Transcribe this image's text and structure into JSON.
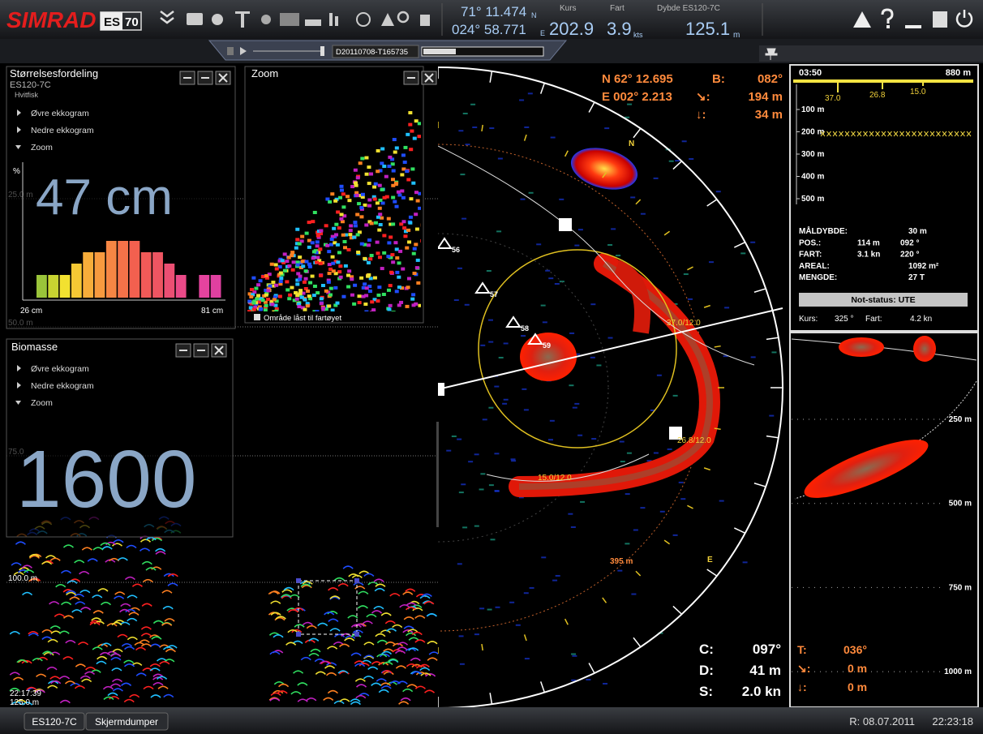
{
  "top_bar": {
    "brand": "SIMRAD",
    "model_prefix": "ES",
    "model_num": "70",
    "lat": "71° 11.474",
    "lat_hem": "N",
    "lon": "024° 58.771",
    "lon_hem": "E",
    "course_label": "Kurs",
    "course": "202.9",
    "speed_label": "Fart",
    "speed": "3.9",
    "speed_unit": "kts",
    "depth_label": "Dybde ES120-7C",
    "depth": "125.1",
    "depth_unit": "m"
  },
  "toolbar": {
    "file": "D20110708-T165735"
  },
  "size_panel": {
    "title": "Størrelsesfordeling",
    "sounder": "ES120-7C",
    "species": "Hvitfisk",
    "menu": [
      "Øvre ekkogram",
      "Nedre ekkogram",
      "Zoom"
    ],
    "axis_label": "%",
    "mean": "47 cm",
    "min_label": "26 cm",
    "max_label": "81 cm",
    "histogram": {
      "values": [
        4,
        4,
        4,
        6,
        8,
        8,
        10,
        10,
        10,
        8,
        8,
        6,
        4,
        0,
        4,
        4
      ],
      "colors": [
        "#9ac43a",
        "#c8d431",
        "#f2e130",
        "#f5c834",
        "#f7ad3a",
        "#f79a3f",
        "#f68644",
        "#f57249",
        "#f3604f",
        "#f15a58",
        "#ee5562",
        "#ec4f73",
        "#ea4a88",
        "#e8469c",
        "#e5439e",
        "#e040a0"
      ]
    }
  },
  "zoom_panel": {
    "title": "Zoom",
    "lock_label": "Område låst til fartøyet"
  },
  "biomass_panel": {
    "title": "Biomasse",
    "menu": [
      "Øvre ekkogram",
      "Nedre ekkogram",
      "Zoom"
    ],
    "value": "1600"
  },
  "echogram": {
    "depth_labels": [
      "25.0 m",
      "50.0 m",
      "75.0",
      "100.0 m"
    ],
    "time": "22:17:39",
    "bottom_depth": "125.0 m"
  },
  "sonar": {
    "pos_n": "N  62° 12.695",
    "bearing_label": "B:",
    "bearing": "082°",
    "pos_e": "E 002° 2.213",
    "range_label": "↘:",
    "range": "194 m",
    "depth_label": "↓:",
    "depth": "34 m",
    "markers": [
      "56",
      "57",
      "58",
      "59"
    ],
    "compass_n": "N",
    "compass_e": "E",
    "ring_labels": [
      "37.0/12.0",
      "26.8/12.0",
      "15.0/12.0"
    ],
    "range_ring": "395 m",
    "course_label": "C:",
    "course": "097°",
    "dist_label": "D:",
    "dist": "41 m",
    "speed_label": "S:",
    "speed": "2.0 kn"
  },
  "catch_panel": {
    "time": "03:50",
    "range": "880 m",
    "marks": [
      "37.0",
      "26.8",
      "15.0"
    ],
    "depths": [
      "100 m",
      "200 m",
      "300 m",
      "400 m",
      "500 m"
    ],
    "rows": [
      [
        "MÅLDYBDE:",
        "30 m"
      ],
      [
        "POS.:",
        "114 m",
        "092 °"
      ],
      [
        "FART:",
        "3.1 kn",
        "220 °"
      ],
      [
        "AREAL:",
        "1092 m²"
      ],
      [
        "MENGDE:",
        "27 T"
      ]
    ],
    "status": "Not-status: UTE",
    "course_label": "Kurs:",
    "course": "325 °",
    "speed_label": "Fart:",
    "speed": "4.2 kn"
  },
  "side_echo": {
    "depths": [
      "250 m",
      "500 m",
      "750 m",
      "1000 m"
    ],
    "t_label": "T:",
    "t_value": "036°",
    "range_label": "↘:",
    "range": "0 m",
    "depth_label": "↓:",
    "depth": "0 m"
  },
  "status_bar": {
    "buttons": [
      "ES120-7C",
      "Skjermdumper"
    ],
    "date": "R: 08.07.2011",
    "time": "22:23:18"
  }
}
